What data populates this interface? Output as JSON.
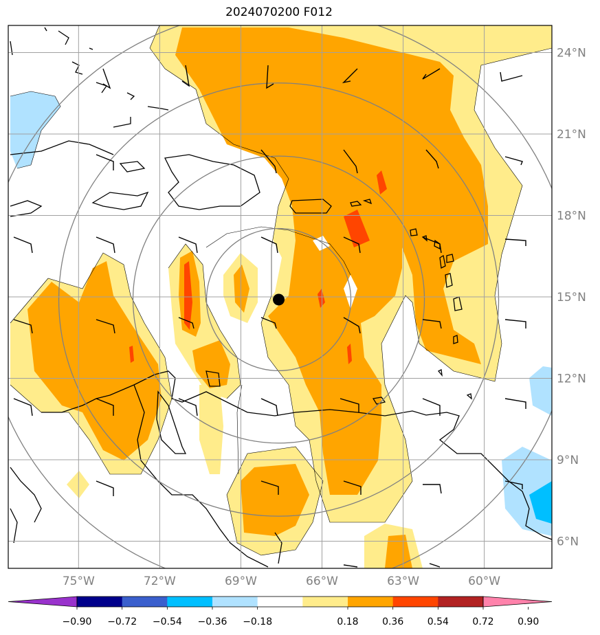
{
  "title": "2024070200 F012",
  "map": {
    "lat_labels": [
      "24°N",
      "21°N",
      "18°N",
      "15°N",
      "12°N",
      "9°N",
      "6°N"
    ],
    "lon_labels": [
      "75°W",
      "72°W",
      "69°W",
      "66°W",
      "63°W",
      "60°W"
    ],
    "lats": [
      24,
      21,
      18,
      15,
      12,
      9,
      6
    ],
    "lons": [
      -75,
      -72,
      -69,
      -66,
      -63,
      -60
    ],
    "extent": {
      "lon_min": -77.6,
      "lon_max": -57.5,
      "lat_min": 5.0,
      "lat_max": 25.0
    },
    "storm_center": {
      "lon": -67.6,
      "lat": 14.9
    },
    "grid_color": "#a0a0a0",
    "range_ring_color": "#808080"
  },
  "colorbar": {
    "tick_labels": [
      "−0.90",
      "−0.72",
      "−0.54",
      "−0.36",
      "−0.18",
      "0.18",
      "0.36",
      "0.54",
      "0.72",
      "0.90"
    ],
    "colors": [
      "#9932cc",
      "#00008b",
      "#3a5fcd",
      "#00bfff",
      "#b0e2ff",
      "#ffffff",
      "#ffec8b",
      "#ffa500",
      "#ff4500",
      "#b22222",
      "#ff82ab"
    ]
  },
  "shading": {
    "c_036": "#ffec8b",
    "c_054": "#ffa500",
    "c_072": "#ff4500",
    "c_neg018": "#b0e2ff",
    "c_neg036": "#00bfff"
  }
}
